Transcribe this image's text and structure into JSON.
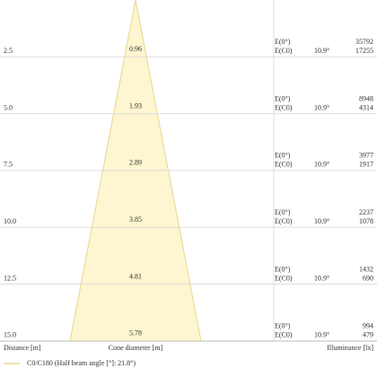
{
  "rows": [
    {
      "distance": "2.5",
      "diameter": "0.96",
      "e0_label": "E(0°)",
      "ec0_label": "E(C0)",
      "angle": "10.9°",
      "e0": "35792",
      "ec0": "17255"
    },
    {
      "distance": "5.0",
      "diameter": "1.93",
      "e0_label": "E(0°)",
      "ec0_label": "E(C0)",
      "angle": "10.9°",
      "e0": "8948",
      "ec0": "4314"
    },
    {
      "distance": "7.5",
      "diameter": "2.89",
      "e0_label": "E(0°)",
      "ec0_label": "E(C0)",
      "angle": "10.9°",
      "e0": "3977",
      "ec0": "1917"
    },
    {
      "distance": "10.0",
      "diameter": "3.85",
      "e0_label": "E(0°)",
      "ec0_label": "E(C0)",
      "angle": "10.9°",
      "e0": "2237",
      "ec0": "1078"
    },
    {
      "distance": "12.5",
      "diameter": "4.81",
      "e0_label": "E(0°)",
      "ec0_label": "E(C0)",
      "angle": "10.9°",
      "e0": "1432",
      "ec0": "690"
    },
    {
      "distance": "15.0",
      "diameter": "5.78",
      "e0_label": "E(0°)",
      "ec0_label": "E(C0)",
      "angle": "10.9°",
      "e0": "994",
      "ec0": "479"
    }
  ],
  "footer": {
    "distance": "Distance [m]",
    "diameter": "Cone diameter [m]",
    "illuminance": "Illuminance [lx]"
  },
  "legend": {
    "label": "C0/C180 (Half beam angle [°]: 21.8°)"
  }
}
